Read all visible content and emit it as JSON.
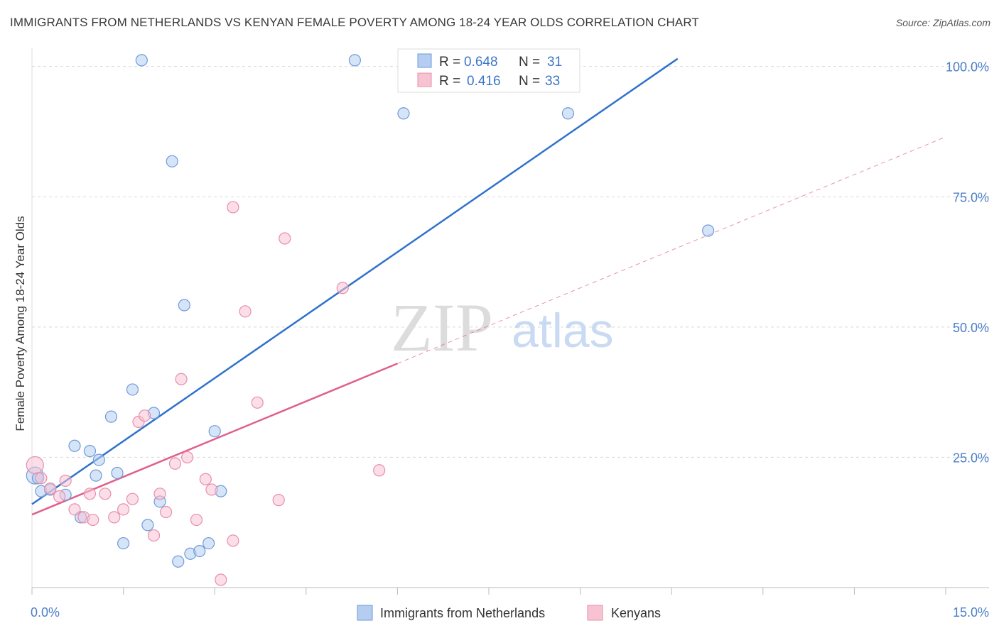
{
  "title": "IMMIGRANTS FROM NETHERLANDS VS KENYAN FEMALE POVERTY AMONG 18-24 YEAR OLDS CORRELATION CHART",
  "source": "Source: ZipAtlas.com",
  "watermark": {
    "zip": "ZIP",
    "atlas": "atlas"
  },
  "colors": {
    "netherlands_fill": "#b5cdf0",
    "netherlands_stroke": "#6e9bd9",
    "netherlands_line": "#2f72cc",
    "kenyans_fill": "#f7c3d3",
    "kenyans_stroke": "#e78fab",
    "kenyans_line": "#e0608c",
    "tick_label": "#4a7fc9",
    "grid": "#d9d9d9"
  },
  "legend_top": {
    "rows": [
      {
        "r_label": "R = ",
        "r_value": "0.648",
        "n_label": "N = ",
        "n_value": "31"
      },
      {
        "r_label": "R = ",
        "r_value": "0.416",
        "n_label": "N = ",
        "n_value": "33"
      }
    ]
  },
  "chart_data": {
    "type": "scatter",
    "title": "IMMIGRANTS FROM NETHERLANDS VS KENYAN FEMALE POVERTY AMONG 18-24 YEAR OLDS CORRELATION CHART",
    "xlabel": "",
    "ylabel": "Female Poverty Among 18-24 Year Olds",
    "xlim": [
      0,
      15
    ],
    "ylim": [
      0,
      100
    ],
    "x_tick_labels": [
      {
        "value": 0,
        "label": "0.0%"
      },
      {
        "value": 15,
        "label": "15.0%"
      }
    ],
    "y_tick_labels": [
      {
        "value": 25,
        "label": "25.0%"
      },
      {
        "value": 50,
        "label": "50.0%"
      },
      {
        "value": 75,
        "label": "75.0%"
      },
      {
        "value": 100,
        "label": "100.0%"
      }
    ],
    "grid": true,
    "legend_position": "bottom",
    "series": [
      {
        "name": "Immigrants from Netherlands",
        "color": "#b5cdf0",
        "points": [
          [
            0.05,
            21.5
          ],
          [
            0.1,
            21.0
          ],
          [
            0.15,
            18.5
          ],
          [
            0.3,
            18.8
          ],
          [
            0.55,
            17.8
          ],
          [
            0.7,
            27.2
          ],
          [
            0.8,
            13.5
          ],
          [
            0.95,
            26.2
          ],
          [
            1.05,
            21.5
          ],
          [
            1.1,
            24.5
          ],
          [
            1.3,
            32.8
          ],
          [
            1.4,
            22.0
          ],
          [
            1.5,
            8.5
          ],
          [
            1.65,
            38.0
          ],
          [
            1.8,
            101.2
          ],
          [
            1.9,
            12.0
          ],
          [
            2.0,
            33.5
          ],
          [
            2.1,
            16.5
          ],
          [
            2.3,
            81.8
          ],
          [
            2.4,
            5.0
          ],
          [
            2.5,
            54.2
          ],
          [
            2.6,
            6.5
          ],
          [
            2.75,
            7.0
          ],
          [
            2.9,
            8.5
          ],
          [
            3.0,
            30.0
          ],
          [
            3.1,
            18.5
          ],
          [
            5.3,
            101.2
          ],
          [
            6.1,
            91.0
          ],
          [
            7.1,
            101.5
          ],
          [
            8.8,
            91.0
          ],
          [
            11.1,
            68.5
          ]
        ]
      },
      {
        "name": "Kenyans",
        "color": "#f7c3d3",
        "points": [
          [
            0.05,
            23.5
          ],
          [
            0.15,
            21.0
          ],
          [
            0.3,
            19.0
          ],
          [
            0.45,
            17.5
          ],
          [
            0.55,
            20.5
          ],
          [
            0.7,
            15.0
          ],
          [
            0.85,
            13.5
          ],
          [
            0.95,
            18.0
          ],
          [
            1.0,
            13.0
          ],
          [
            1.2,
            18.0
          ],
          [
            1.35,
            13.5
          ],
          [
            1.5,
            15.0
          ],
          [
            1.65,
            17.0
          ],
          [
            1.75,
            31.8
          ],
          [
            1.85,
            33.0
          ],
          [
            2.0,
            10.0
          ],
          [
            2.1,
            18.0
          ],
          [
            2.2,
            14.5
          ],
          [
            2.35,
            23.8
          ],
          [
            2.45,
            40.0
          ],
          [
            2.55,
            25.0
          ],
          [
            2.7,
            13.0
          ],
          [
            2.85,
            20.8
          ],
          [
            2.95,
            18.8
          ],
          [
            3.1,
            1.5
          ],
          [
            3.3,
            9.0
          ],
          [
            3.3,
            73.0
          ],
          [
            3.5,
            53.0
          ],
          [
            3.7,
            35.5
          ],
          [
            4.05,
            16.8
          ],
          [
            4.15,
            67.0
          ],
          [
            5.1,
            57.5
          ],
          [
            5.7,
            22.5
          ]
        ]
      }
    ],
    "trend_lines": [
      {
        "series": "Immigrants from Netherlands",
        "x0": 0,
        "y0": 16.0,
        "x1": 10.6,
        "y1": 101.5,
        "style": "solid"
      },
      {
        "series": "Kenyans",
        "x0": 0,
        "y0": 14.0,
        "x1": 6.0,
        "y1": 43.0,
        "style": "solid"
      },
      {
        "series": "Kenyans",
        "x0": 6.0,
        "y0": 43.0,
        "x1": 15.0,
        "y1": 86.5,
        "style": "dashed"
      }
    ]
  }
}
